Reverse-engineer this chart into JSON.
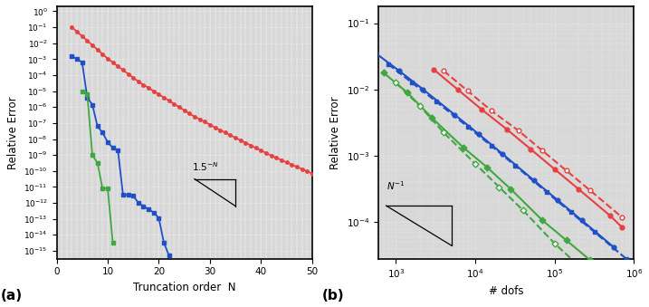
{
  "panel_a": {
    "red": {
      "x": [
        3,
        4,
        5,
        6,
        7,
        8,
        9,
        10,
        11,
        12,
        13,
        14,
        15,
        16,
        17,
        18,
        19,
        20,
        21,
        22,
        23,
        24,
        25,
        26,
        27,
        28,
        29,
        30,
        31,
        32,
        33,
        34,
        35,
        36,
        37,
        38,
        39,
        40,
        41,
        42,
        43,
        44,
        45,
        46,
        47,
        48,
        49,
        50
      ],
      "y_exp": [
        -1.0,
        -1.28,
        -1.56,
        -1.84,
        -2.12,
        -2.4,
        -2.68,
        -2.96,
        -3.2,
        -3.44,
        -3.68,
        -3.92,
        -4.16,
        -4.4,
        -4.6,
        -4.8,
        -5.0,
        -5.2,
        -5.4,
        -5.6,
        -5.8,
        -6.0,
        -6.2,
        -6.4,
        -6.6,
        -6.76,
        -6.92,
        -7.1,
        -7.28,
        -7.44,
        -7.6,
        -7.76,
        -7.92,
        -8.08,
        -8.24,
        -8.4,
        -8.56,
        -8.72,
        -8.88,
        -9.04,
        -9.18,
        -9.32,
        -9.46,
        -9.6,
        -9.74,
        -9.88,
        -10.02,
        -10.16
      ]
    },
    "blue": {
      "x": [
        3,
        4,
        5,
        6,
        7,
        8,
        9,
        10,
        11,
        12,
        13,
        14,
        15,
        16,
        17,
        18,
        19,
        20,
        21,
        22
      ],
      "y_exp": [
        -2.8,
        -3.0,
        -3.2,
        -5.4,
        -5.85,
        -7.2,
        -7.6,
        -8.2,
        -8.55,
        -8.7,
        -11.5,
        -11.5,
        -11.55,
        -12.0,
        -12.2,
        -12.4,
        -12.6,
        -12.95,
        -14.5,
        -15.3
      ]
    },
    "green": {
      "x": [
        5,
        6,
        7,
        8,
        9,
        10,
        11
      ],
      "y_exp": [
        -5.0,
        -5.2,
        -9.0,
        -9.5,
        -11.1,
        -11.1,
        -14.5
      ]
    },
    "xlim": [
      0,
      50
    ],
    "ylim_exp": [
      -15.5,
      0.3
    ],
    "yticks_exp": [
      0,
      -1,
      -2,
      -3,
      -4,
      -5,
      -6,
      -7,
      -8,
      -9,
      -10,
      -11,
      -12,
      -13,
      -14,
      -15
    ],
    "xticks": [
      0,
      10,
      20,
      30,
      40,
      50
    ],
    "xlabel": "Truncation order  N",
    "ylabel": "Relative Error",
    "label": "(a)",
    "tri_x1": 27,
    "tri_x2": 35,
    "tri_y1_exp": -10.5,
    "tri_y2_exp": -12.2,
    "ann_x": 26.5,
    "ann_y_exp": -10.1
  },
  "panel_b": {
    "blue_solid": {
      "x": [
        550,
        1100,
        2200,
        5500,
        11000,
        22000,
        55000,
        110000,
        220000,
        550000
      ],
      "y_exp": [
        -1.45,
        -1.72,
        -2.0,
        -2.38,
        -2.67,
        -2.97,
        -3.37,
        -3.67,
        -3.97,
        -4.37
      ]
    },
    "blue_dashed": {
      "x": [
        800,
        1600,
        3200,
        8000,
        16000,
        32000,
        80000,
        160000,
        320000,
        800000
      ],
      "y_exp": [
        -1.62,
        -1.9,
        -2.18,
        -2.56,
        -2.85,
        -3.15,
        -3.55,
        -3.85,
        -4.15,
        -4.55
      ]
    },
    "red_solid": {
      "x": [
        3000,
        6000,
        12000,
        25000,
        50000,
        100000,
        200000,
        500000,
        700000
      ],
      "y_exp": [
        -1.7,
        -2.0,
        -2.3,
        -2.6,
        -2.9,
        -3.2,
        -3.5,
        -3.9,
        -4.07
      ]
    },
    "red_dashed": {
      "x": [
        4000,
        8000,
        16000,
        35000,
        70000,
        140000,
        280000,
        700000
      ],
      "y_exp": [
        -1.72,
        -2.02,
        -2.32,
        -2.62,
        -2.92,
        -3.22,
        -3.52,
        -3.92
      ]
    },
    "green_solid": {
      "x": [
        700,
        1400,
        2800,
        7000,
        14000,
        28000,
        70000,
        140000,
        280000
      ],
      "y_exp": [
        -1.75,
        -2.05,
        -2.42,
        -2.87,
        -3.17,
        -3.5,
        -3.97,
        -4.27,
        -4.57
      ]
    },
    "green_dashed": {
      "x": [
        1000,
        2000,
        4000,
        10000,
        20000,
        40000,
        100000,
        200000
      ],
      "y_exp": [
        -1.9,
        -2.25,
        -2.65,
        -3.12,
        -3.47,
        -3.82,
        -4.32,
        -4.65
      ]
    },
    "xlim": [
      600,
      1000000
    ],
    "ylim_exp": [
      -4.55,
      -0.75
    ],
    "xlabel": "# dofs",
    "ylabel": "Relative Error",
    "label": "(b)",
    "tri_x1": 750,
    "tri_x2": 5000,
    "tri_y1_exp": -3.75,
    "tri_y2_exp": -4.35,
    "ann_x": 750,
    "ann_y_exp": -3.55
  },
  "colors": {
    "red": "#e84040",
    "blue": "#2050c8",
    "green": "#40a840"
  },
  "bg_color": "#d8d8d8",
  "dot_color": "#ffffff"
}
